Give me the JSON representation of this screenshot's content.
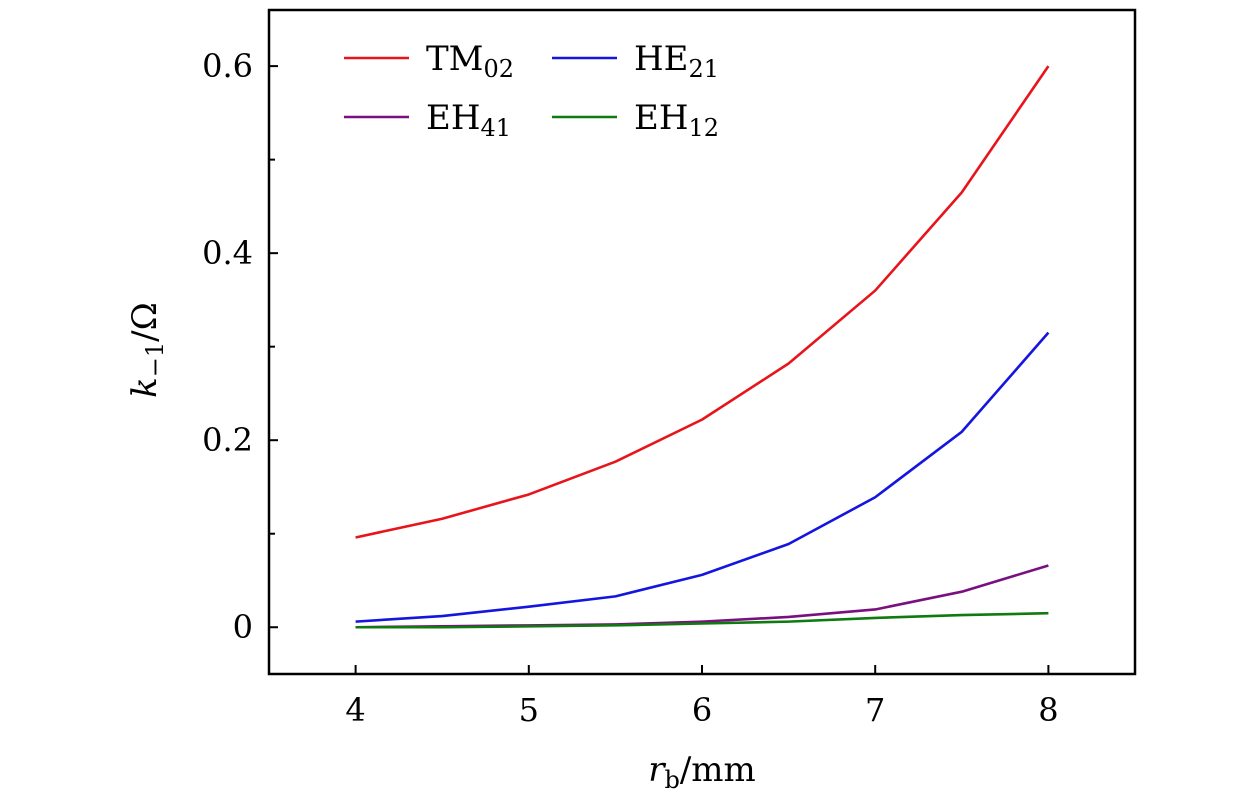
{
  "chart_data": {
    "type": "line",
    "title": "",
    "xlabel": {
      "main": "r",
      "sub": "b",
      "unit": "/mm"
    },
    "ylabel": {
      "main": "k",
      "sub": "−1",
      "unit": "/Ω"
    },
    "xlim": [
      3.5,
      8.5
    ],
    "ylim": [
      -0.05,
      0.66
    ],
    "x_ticks": [
      4,
      5,
      6,
      7,
      8
    ],
    "x_tick_labels": [
      "4",
      "5",
      "6",
      "7",
      "8"
    ],
    "y_ticks": [
      0,
      0.2,
      0.4,
      0.6
    ],
    "y_tick_labels": [
      "0",
      "0.2",
      "0.4",
      "0.6"
    ],
    "y_minor_ticks": [
      0.1,
      0.3,
      0.5
    ],
    "grid": false,
    "legend_position": "top-left",
    "legend_columns": 2,
    "x": [
      4,
      4.5,
      5,
      5.5,
      6,
      6.5,
      7,
      7.5,
      8
    ],
    "series": [
      {
        "name": "TM",
        "name_sub": "02",
        "color": "#e8141b",
        "values": [
          0.096,
          0.116,
          0.142,
          0.177,
          0.222,
          0.282,
          0.36,
          0.465,
          0.6
        ]
      },
      {
        "name": "HE",
        "name_sub": "21",
        "color": "#1515e0",
        "values": [
          0.006,
          0.012,
          0.022,
          0.033,
          0.056,
          0.089,
          0.139,
          0.209,
          0.315
        ]
      },
      {
        "name": "EH",
        "name_sub": "41",
        "color": "#7a1080",
        "values": [
          0.0,
          0.001,
          0.002,
          0.003,
          0.006,
          0.011,
          0.019,
          0.038,
          0.066
        ]
      },
      {
        "name": "EH",
        "name_sub": "12",
        "color": "#0f7a0f",
        "values": [
          0.0,
          0.0,
          0.001,
          0.002,
          0.004,
          0.006,
          0.01,
          0.013,
          0.015
        ]
      }
    ]
  }
}
